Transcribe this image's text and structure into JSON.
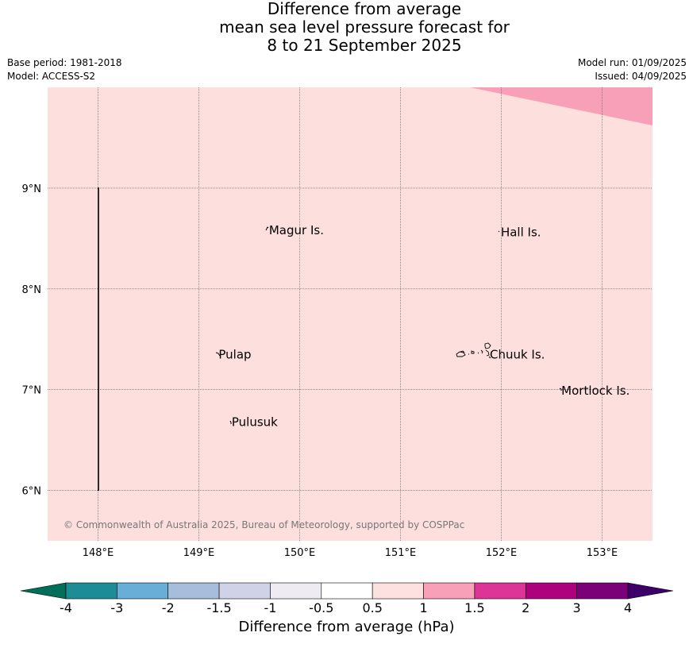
{
  "title": {
    "line1": "Difference from average",
    "line2": "mean sea level pressure forecast for",
    "line3": "8 to 21 September 2025"
  },
  "meta_left": {
    "base_period": "Base period: 1981-2018",
    "model": "Model: ACCESS-S2"
  },
  "meta_right": {
    "model_run": "Model run: 01/09/2025",
    "issued": "Issued: 04/09/2025"
  },
  "map": {
    "background_color": "#fddfde",
    "highlight_color": "#f8a0b8",
    "lon_range": [
      147.5,
      153.5
    ],
    "lat_range": [
      5.5,
      10.0
    ],
    "lon_ticks": [
      "148°E",
      "149°E",
      "150°E",
      "151°E",
      "152°E",
      "153°E"
    ],
    "lat_ticks": [
      "9°N",
      "8°N",
      "7°N",
      "6°N"
    ],
    "places": [
      {
        "name": "Magur Is.",
        "lon": 149.68,
        "lat": 8.58
      },
      {
        "name": "Hall Is.",
        "lon": 151.98,
        "lat": 8.56
      },
      {
        "name": "Pulap",
        "lon": 149.18,
        "lat": 7.35
      },
      {
        "name": "Chuuk Is.",
        "lon": 151.87,
        "lat": 7.35
      },
      {
        "name": "Mortlock Is.",
        "lon": 152.58,
        "lat": 6.99
      },
      {
        "name": "Pulusuk",
        "lon": 149.31,
        "lat": 6.68
      }
    ],
    "copyright": "© Commonwealth of Australia 2025, Bureau of Meteorology, supported by COSPPac"
  },
  "colorbar": {
    "label": "Difference from average (hPa)",
    "low_extend_color": "#006f5a",
    "high_extend_color": "#3d0069",
    "colors": [
      "#1e8c96",
      "#68aed6",
      "#a8bcdc",
      "#d0d3e8",
      "#efebf3",
      "#ffffff",
      "#fde0e0",
      "#f8a0b8",
      "#dd3497",
      "#ae017e",
      "#7a0177"
    ],
    "ticks": [
      "-4",
      "-3",
      "-2",
      "-1.5",
      "-1",
      "-0.5",
      "0.5",
      "1",
      "1.5",
      "2",
      "3",
      "4"
    ]
  }
}
